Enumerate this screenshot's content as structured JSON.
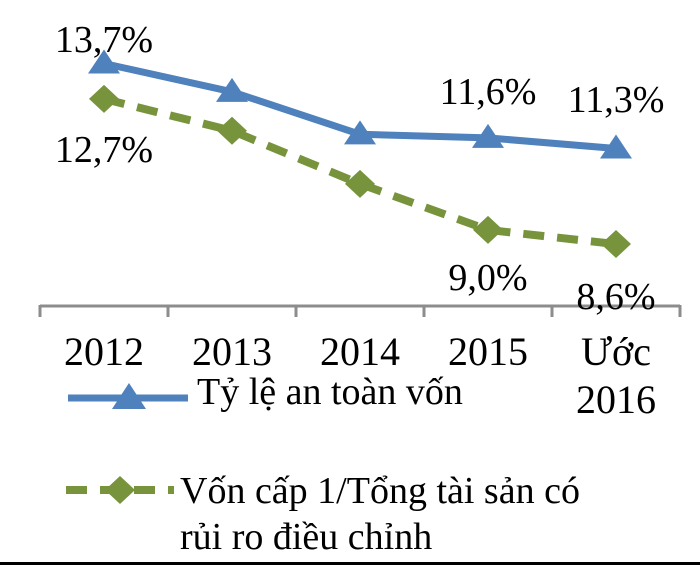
{
  "chart_data": {
    "type": "line",
    "title": "",
    "xlabel": "",
    "ylabel": "",
    "categories": [
      "2012",
      "2013",
      "2014",
      "2015",
      "Ước 2016"
    ],
    "categories_display": [
      [
        "2012"
      ],
      [
        "2013"
      ],
      [
        "2014"
      ],
      [
        "2015"
      ],
      [
        "Ước",
        "2016"
      ]
    ],
    "series": [
      {
        "name": "Tỷ lệ an toàn vốn",
        "values": [
          13.7,
          12.9,
          11.7,
          11.6,
          11.3
        ],
        "point_labels": [
          "13,7%",
          "",
          "",
          "11,6%",
          "11,3%"
        ],
        "color": "#4f81bd",
        "marker": "triangle",
        "line_style": "solid"
      },
      {
        "name": "Vốn cấp 1/Tổng tài sản có rủi ro điều chỉnh",
        "values": [
          12.7,
          11.8,
          10.3,
          9.0,
          8.6
        ],
        "point_labels": [
          "12,7%",
          "",
          "",
          "9,0%",
          "8,6%"
        ],
        "color": "#77933c",
        "marker": "diamond",
        "line_style": "dashed"
      }
    ],
    "legend": {
      "position": "bottom-left",
      "entries": [
        {
          "label": "Tỷ lệ an toàn vốn",
          "label_lines": [
            "Tỷ lệ an toàn vốn"
          ]
        },
        {
          "label": "Vốn cấp 1/Tổng tài sản có rủi ro điều chỉnh",
          "label_lines": [
            "Vốn cấp 1/Tổng tài sản có",
            "rủi ro điều chỉnh"
          ]
        }
      ]
    },
    "axes": {
      "x_axis_visible": true,
      "y_axis_visible": false,
      "grid": false,
      "axis_color": "#8c8c8c",
      "text_color": "#000000",
      "ylim": [
        8.0,
        14.6
      ]
    },
    "value_format": "comma-decimal-percent"
  }
}
